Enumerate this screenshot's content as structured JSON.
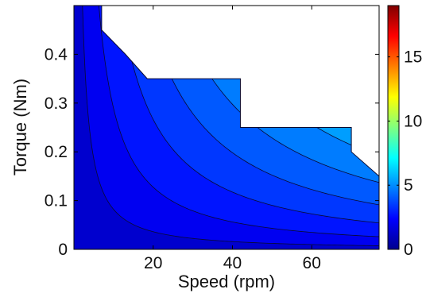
{
  "chart_data": {
    "type": "contour",
    "xlabel": "Speed (rpm)",
    "ylabel": "Torque (Nm)",
    "xlim": [
      0,
      77
    ],
    "ylim": [
      0,
      0.5
    ],
    "x_ticks": [
      20,
      40,
      60
    ],
    "x_tick_labels": [
      "20",
      "40",
      "60"
    ],
    "y_ticks": [
      0,
      0.1,
      0.2,
      0.3,
      0.4
    ],
    "y_tick_labels": [
      "0",
      "0.1",
      "0.2",
      "0.3",
      "0.4"
    ],
    "colorbar": {
      "colormap": "jet",
      "range": [
        0,
        19
      ],
      "ticks": [
        0,
        5,
        10,
        15
      ],
      "tick_labels": [
        "0",
        "5",
        "10",
        "15"
      ]
    },
    "contour_levels": [
      0,
      0.7,
      1.4,
      2.1,
      2.8,
      3.5,
      4.2,
      4.9,
      5.6,
      6.3
    ],
    "feasible_region_boundary": [
      {
        "x": 0,
        "y": 0.5
      },
      {
        "x": 7,
        "y": 0.5
      },
      {
        "x": 7,
        "y": 0.45
      },
      {
        "x": 13,
        "y": 0.4
      },
      {
        "x": 18.5,
        "y": 0.35
      },
      {
        "x": 42,
        "y": 0.35
      },
      {
        "x": 42,
        "y": 0.25
      },
      {
        "x": 70,
        "y": 0.25
      },
      {
        "x": 70,
        "y": 0.2
      },
      {
        "x": 77,
        "y": 0.15
      },
      {
        "x": 77,
        "y": 0
      }
    ],
    "grid": false
  }
}
